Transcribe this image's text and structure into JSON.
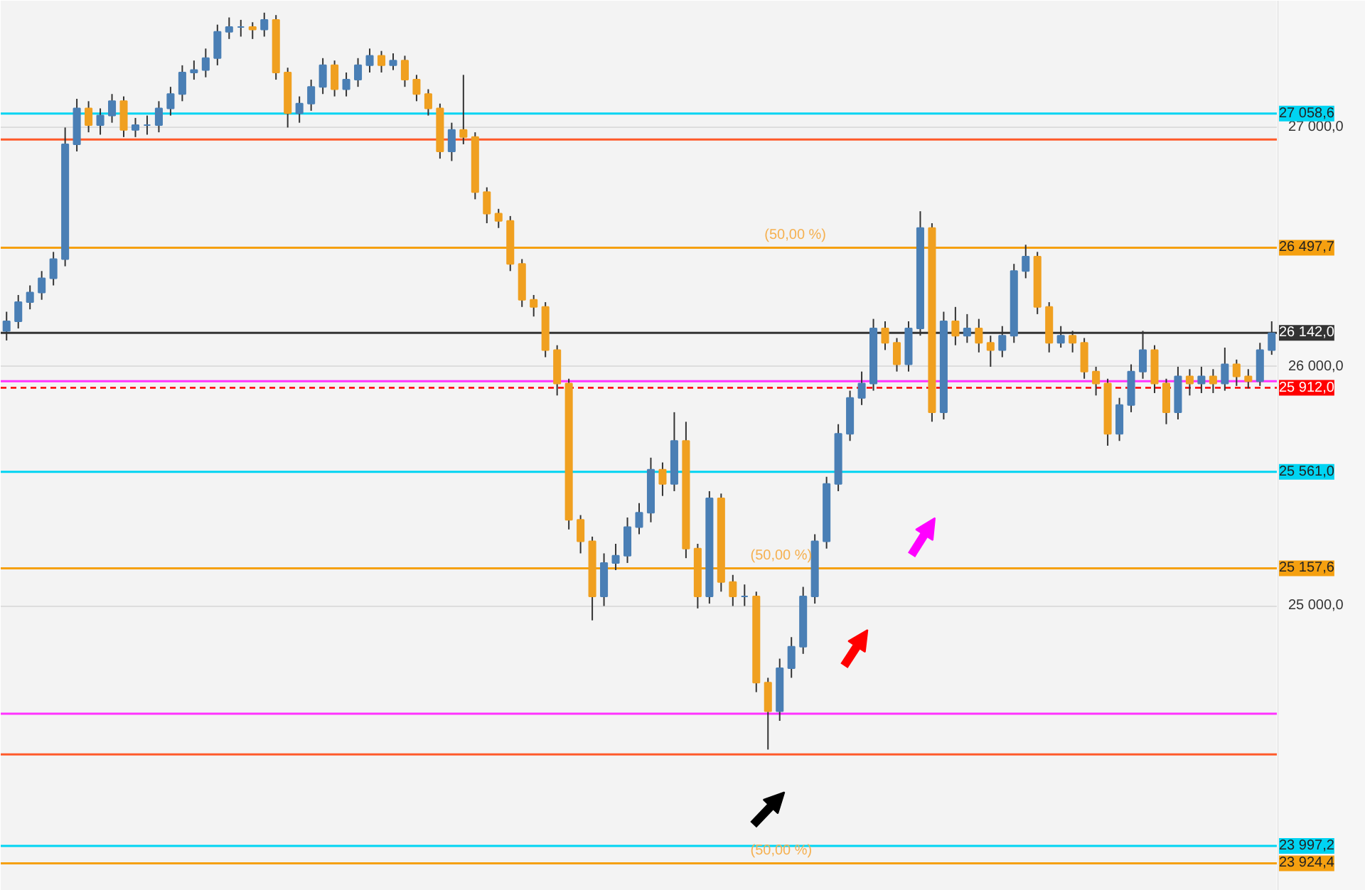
{
  "chart_data": {
    "type": "candlestick",
    "categories": [
      null,
      null,
      null,
      null,
      null,
      null,
      null,
      null,
      null,
      null,
      null,
      null,
      null,
      null,
      null,
      null,
      null,
      null,
      null,
      null,
      null,
      null,
      null,
      null,
      null,
      null,
      null,
      null,
      null,
      null,
      null,
      null,
      null,
      null,
      null,
      null,
      null,
      null,
      null,
      null,
      null,
      null,
      null,
      null,
      null,
      null,
      null,
      null,
      null,
      null,
      null,
      null,
      null,
      null,
      null,
      null,
      null,
      null,
      null,
      null,
      null,
      null,
      null,
      null,
      null,
      null,
      null,
      null,
      null,
      null,
      null,
      null,
      null,
      null,
      null,
      null,
      null,
      null,
      null,
      null,
      null,
      null,
      null,
      null,
      null,
      null,
      null,
      null,
      null,
      null,
      null,
      null,
      null,
      null,
      null,
      null,
      null,
      null,
      null,
      null,
      null,
      null,
      null,
      null,
      null,
      null,
      null,
      null,
      null
    ],
    "ohlc": [
      [
        26150,
        26230,
        26110,
        26190
      ],
      [
        26190,
        26300,
        26160,
        26270
      ],
      [
        26270,
        26340,
        26240,
        26310
      ],
      [
        26310,
        26400,
        26280,
        26370
      ],
      [
        26370,
        26480,
        26340,
        26450
      ],
      [
        26450,
        27000,
        26420,
        26930
      ],
      [
        26930,
        27120,
        26900,
        27080
      ],
      [
        27080,
        27110,
        26980,
        27010
      ],
      [
        27010,
        27080,
        26970,
        27050
      ],
      [
        27050,
        27140,
        27020,
        27110
      ],
      [
        27110,
        27130,
        26960,
        26990
      ],
      [
        26990,
        27040,
        26960,
        27010
      ],
      [
        27010,
        27050,
        26970,
        27010
      ],
      [
        27010,
        27110,
        26980,
        27080
      ],
      [
        27080,
        27170,
        27050,
        27140
      ],
      [
        27140,
        27260,
        27110,
        27230
      ],
      [
        27230,
        27280,
        27200,
        27240
      ],
      [
        27240,
        27330,
        27210,
        27290
      ],
      [
        27290,
        27430,
        27260,
        27400
      ],
      [
        27400,
        27460,
        27370,
        27420
      ],
      [
        27420,
        27450,
        27380,
        27420
      ],
      [
        27420,
        27440,
        27370,
        27410
      ],
      [
        27410,
        27480,
        27380,
        27450
      ],
      [
        27450,
        27470,
        27200,
        27230
      ],
      [
        27230,
        27250,
        27000,
        27060
      ],
      [
        27060,
        27130,
        27020,
        27100
      ],
      [
        27100,
        27200,
        27070,
        27170
      ],
      [
        27170,
        27290,
        27140,
        27260
      ],
      [
        27260,
        27280,
        27130,
        27160
      ],
      [
        27160,
        27230,
        27130,
        27200
      ],
      [
        27200,
        27290,
        27170,
        27260
      ],
      [
        27260,
        27330,
        27230,
        27300
      ],
      [
        27300,
        27320,
        27230,
        27260
      ],
      [
        27260,
        27310,
        27240,
        27280
      ],
      [
        27280,
        27300,
        27170,
        27200
      ],
      [
        27200,
        27220,
        27110,
        27140
      ],
      [
        27140,
        27160,
        27050,
        27080
      ],
      [
        27080,
        27100,
        26870,
        26900
      ],
      [
        26900,
        27020,
        26860,
        26990
      ],
      [
        26990,
        27220,
        26930,
        26960
      ],
      [
        26960,
        26980,
        26700,
        26730
      ],
      [
        26730,
        26750,
        26600,
        26640
      ],
      [
        26640,
        26660,
        26580,
        26610
      ],
      [
        26610,
        26630,
        26400,
        26430
      ],
      [
        26430,
        26450,
        26250,
        26280
      ],
      [
        26280,
        26300,
        26210,
        26250
      ],
      [
        26250,
        26270,
        26040,
        26070
      ],
      [
        26070,
        26090,
        25880,
        25930
      ],
      [
        25930,
        25950,
        25320,
        25360
      ],
      [
        25360,
        25380,
        25220,
        25270
      ],
      [
        25270,
        25290,
        24940,
        25040
      ],
      [
        25040,
        25220,
        25000,
        25180
      ],
      [
        25180,
        25260,
        25150,
        25210
      ],
      [
        25210,
        25370,
        25180,
        25330
      ],
      [
        25330,
        25430,
        25300,
        25390
      ],
      [
        25390,
        25620,
        25350,
        25570
      ],
      [
        25570,
        25600,
        25460,
        25510
      ],
      [
        25510,
        25810,
        25480,
        25690
      ],
      [
        25690,
        25770,
        25200,
        25240
      ],
      [
        25240,
        25260,
        24990,
        25040
      ],
      [
        25040,
        25480,
        25010,
        25450
      ],
      [
        25450,
        25470,
        25060,
        25100
      ],
      [
        25100,
        25130,
        25000,
        25040
      ],
      [
        25040,
        25090,
        25000,
        25040
      ],
      [
        25040,
        25060,
        24640,
        24680
      ],
      [
        24680,
        24700,
        24400,
        24560
      ],
      [
        24560,
        24780,
        24520,
        24740
      ],
      [
        24740,
        24870,
        24700,
        24830
      ],
      [
        24830,
        25080,
        24800,
        25040
      ],
      [
        25040,
        25300,
        25010,
        25270
      ],
      [
        25270,
        25540,
        25240,
        25510
      ],
      [
        25510,
        25760,
        25480,
        25720
      ],
      [
        25720,
        25900,
        25690,
        25870
      ],
      [
        25870,
        25980,
        25840,
        25930
      ],
      [
        25930,
        26200,
        25900,
        26160
      ],
      [
        26160,
        26190,
        26070,
        26100
      ],
      [
        26100,
        26120,
        25980,
        26010
      ],
      [
        26010,
        26190,
        25980,
        26160
      ],
      [
        26160,
        26650,
        26130,
        26580
      ],
      [
        26580,
        26600,
        25770,
        25810
      ],
      [
        25810,
        26230,
        25780,
        26190
      ],
      [
        26190,
        26250,
        26090,
        26130
      ],
      [
        26130,
        26220,
        26100,
        26160
      ],
      [
        26160,
        26200,
        26060,
        26100
      ],
      [
        26100,
        26130,
        26000,
        26070
      ],
      [
        26070,
        26170,
        26040,
        26130
      ],
      [
        26130,
        26430,
        26100,
        26400
      ],
      [
        26400,
        26510,
        26370,
        26460
      ],
      [
        26460,
        26480,
        26220,
        26250
      ],
      [
        26250,
        26270,
        26060,
        26100
      ],
      [
        26100,
        26170,
        26080,
        26130
      ],
      [
        26130,
        26150,
        26060,
        26100
      ],
      [
        26100,
        26120,
        25950,
        25980
      ],
      [
        25980,
        26000,
        25880,
        25930
      ],
      [
        25930,
        25950,
        25670,
        25720
      ],
      [
        25720,
        25870,
        25690,
        25840
      ],
      [
        25840,
        26010,
        25810,
        25980
      ],
      [
        25980,
        26150,
        25950,
        26070
      ],
      [
        26070,
        26090,
        25890,
        25930
      ],
      [
        25930,
        25950,
        25760,
        25810
      ],
      [
        25810,
        26000,
        25780,
        25960
      ],
      [
        25960,
        25990,
        25880,
        25930
      ],
      [
        25930,
        26000,
        25890,
        25960
      ],
      [
        25960,
        25990,
        25890,
        25930
      ],
      [
        25930,
        26080,
        25900,
        26010
      ],
      [
        26010,
        26030,
        25920,
        25960
      ],
      [
        25960,
        25990,
        25910,
        25940
      ],
      [
        25940,
        26100,
        25920,
        26070
      ],
      [
        26070,
        26190,
        26050,
        26140
      ]
    ],
    "ylim": [
      23810,
      27530
    ],
    "yticks": [
      {
        "value": 25000,
        "label": "25 000,0"
      },
      {
        "value": 26000,
        "label": "26 000,0"
      },
      {
        "value": 27000,
        "label": "27 000,0"
      }
    ],
    "grid": "y",
    "ref_lines": [
      {
        "axis": "y",
        "value": 27058.6,
        "label": "27 058,6",
        "color": "#00d4f2"
      },
      {
        "axis": "y",
        "value": 26950,
        "color": "#ff5a2a"
      },
      {
        "axis": "y",
        "value": 26497.7,
        "label": "26 497,7",
        "color": "#f5a010"
      },
      {
        "axis": "y",
        "value": 26142.0,
        "label": "26 142,0",
        "color": "#333333"
      },
      {
        "axis": "y",
        "value": 25940,
        "color": "#ff33ff"
      },
      {
        "axis": "y",
        "value": 25912.0,
        "label": "25 912,0",
        "color": "#ff0000",
        "line_style": "dashed"
      },
      {
        "axis": "y",
        "value": 25561.0,
        "label": "25 561,0",
        "color": "#00d4f2"
      },
      {
        "axis": "y",
        "value": 25157.6,
        "label": "25 157,6",
        "color": "#f5a010"
      },
      {
        "axis": "y",
        "value": 24550,
        "color": "#ff33ff"
      },
      {
        "axis": "y",
        "value": 24380,
        "color": "#ff5a2a"
      },
      {
        "axis": "y",
        "value": 23997.2,
        "label": "23 997,2",
        "color": "#00d4f2"
      },
      {
        "axis": "y",
        "value": 23924.4,
        "label": "23 924,4",
        "color": "#f5a010"
      }
    ],
    "annotations": [
      "(50,00 %)",
      "(50,00 %)",
      "(50,00 %)"
    ]
  }
}
